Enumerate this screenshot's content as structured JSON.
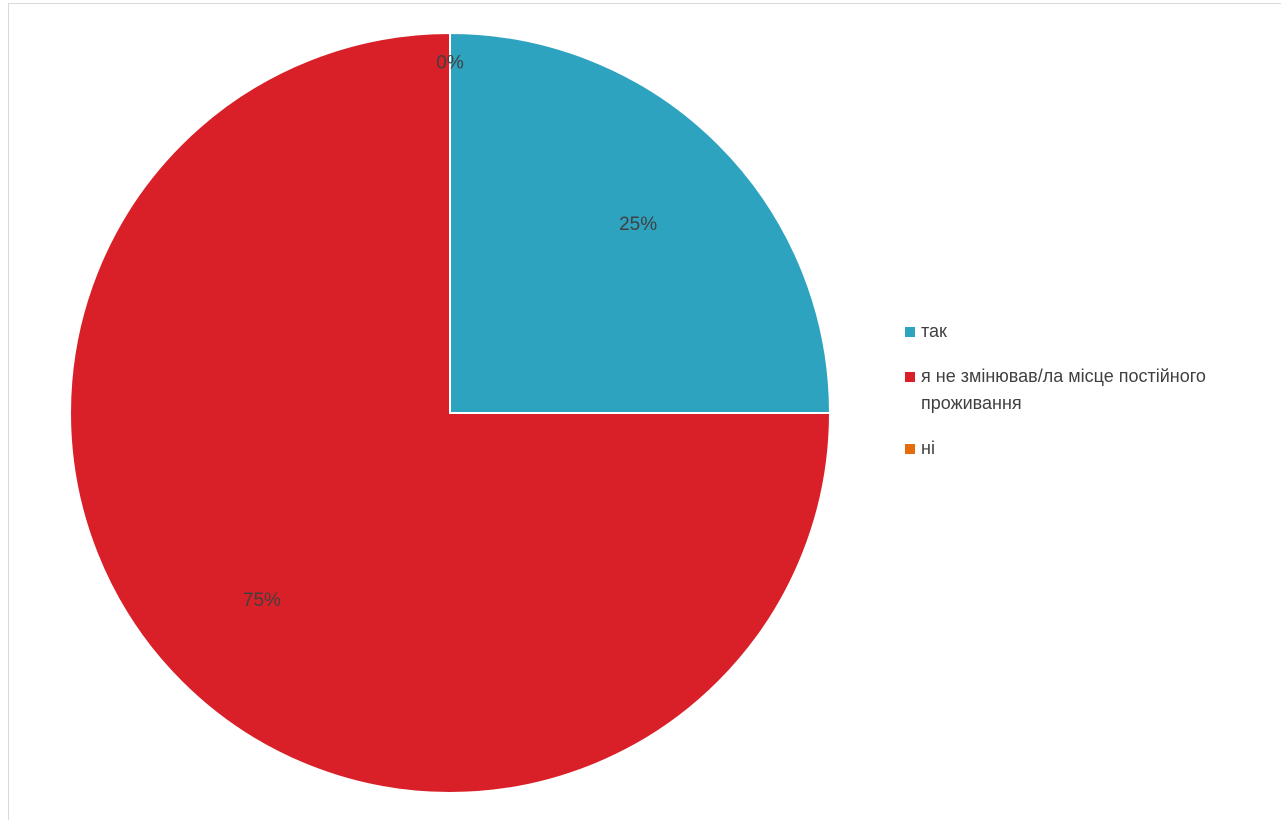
{
  "chart_data": {
    "type": "pie",
    "title": "",
    "categories": [
      "так",
      "я не змінював/ла місце постійного проживання",
      "ні"
    ],
    "values": [
      25,
      75,
      0
    ],
    "value_labels": [
      "25%",
      "75%",
      "0%"
    ],
    "colors": [
      "#2ea3c0",
      "#d91f28",
      "#e46c0a"
    ],
    "legend_position": "right"
  },
  "legend": {
    "items": [
      {
        "label": "так",
        "color": "#2ea3c0"
      },
      {
        "label": "я не змінював/ла місце постійного проживання",
        "color": "#d91f28"
      },
      {
        "label": "ні",
        "color": "#e46c0a"
      }
    ]
  }
}
